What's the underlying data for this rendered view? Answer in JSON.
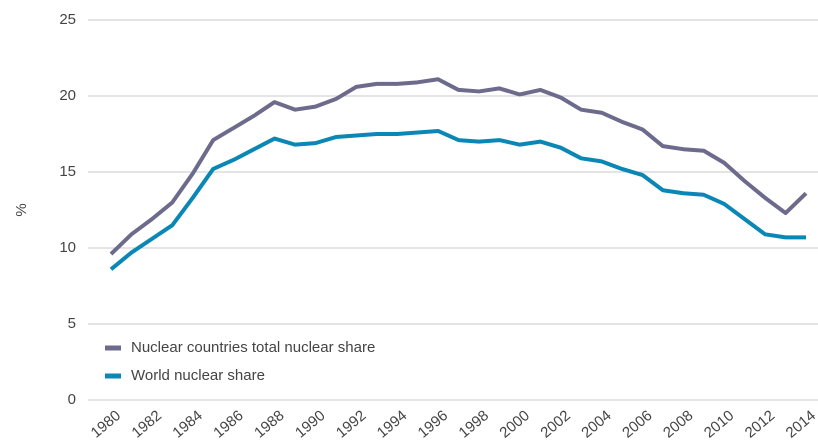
{
  "chart_data": {
    "type": "line",
    "y_label": "%",
    "x": [
      1980,
      1981,
      1982,
      1983,
      1984,
      1985,
      1986,
      1987,
      1988,
      1989,
      1990,
      1991,
      1992,
      1993,
      1994,
      1995,
      1996,
      1997,
      1998,
      1999,
      2000,
      2001,
      2002,
      2003,
      2004,
      2005,
      2006,
      2007,
      2008,
      2009,
      2010,
      2011,
      2012,
      2013,
      2014
    ],
    "xlim": [
      1980,
      2014
    ],
    "xticks": [
      1980,
      1982,
      1984,
      1986,
      1988,
      1990,
      1992,
      1994,
      1996,
      1998,
      2000,
      2002,
      2004,
      2006,
      2008,
      2010,
      2012,
      2014
    ],
    "ylim": [
      0,
      25
    ],
    "yticks": [
      0,
      5,
      10,
      15,
      20,
      25
    ],
    "grid": true,
    "legend": "lower-left",
    "series": [
      {
        "name": "Nuclear countries total nuclear share",
        "color": "#6c6b8c",
        "values": [
          9.6,
          10.9,
          11.9,
          13.0,
          14.9,
          17.1,
          17.9,
          18.7,
          19.6,
          19.1,
          19.3,
          19.8,
          20.6,
          20.8,
          20.8,
          20.9,
          21.1,
          20.4,
          20.3,
          20.5,
          20.1,
          20.4,
          19.9,
          19.1,
          18.9,
          18.3,
          17.8,
          16.7,
          16.5,
          16.4,
          15.6,
          14.4,
          13.3,
          12.3,
          13.6
        ]
      },
      {
        "name": "World nuclear share",
        "color": "#0a87b4",
        "values": [
          8.6,
          9.7,
          10.6,
          11.5,
          13.3,
          15.2,
          15.8,
          16.5,
          17.2,
          16.8,
          16.9,
          17.3,
          17.4,
          17.5,
          17.5,
          17.6,
          17.7,
          17.1,
          17.0,
          17.1,
          16.8,
          17.0,
          16.6,
          15.9,
          15.7,
          15.2,
          14.8,
          13.8,
          13.6,
          13.5,
          12.9,
          11.9,
          10.9,
          10.7,
          10.7
        ]
      }
    ]
  }
}
